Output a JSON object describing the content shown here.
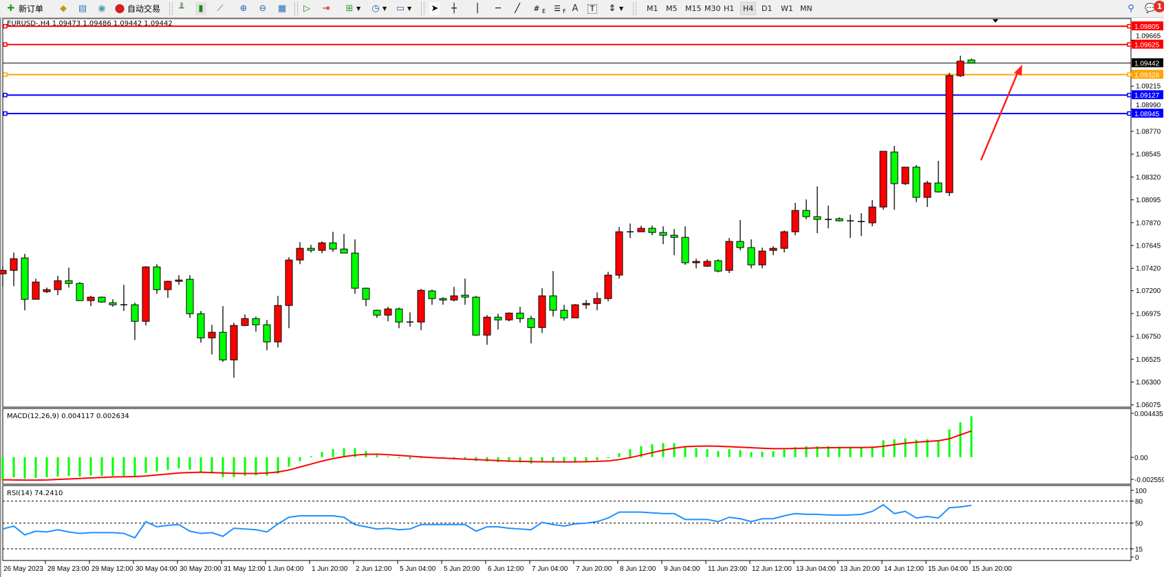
{
  "toolbar": {
    "new_order_label": "新订单",
    "auto_trading_label": "自动交易",
    "icons": [
      "new-order-icon",
      "market-watch-icon",
      "navigator-icon",
      "signals-icon",
      "auto-trading-icon",
      "bar-chart-icon",
      "candlestick-icon",
      "line-chart-icon",
      "zoom-in-icon",
      "zoom-out-icon",
      "tile-windows-icon",
      "auto-scroll-icon",
      "chart-shift-icon",
      "indicators-icon",
      "periods-icon",
      "templates-icon",
      "cursor-icon",
      "crosshair-icon",
      "vertical-line-icon",
      "horizontal-line-icon",
      "trendline-icon",
      "equidistant-channel-icon",
      "fibonacci-icon",
      "text-icon",
      "text-label-icon",
      "arrows-icon",
      "search-icon",
      "notifications-icon"
    ],
    "timeframes": [
      "M1",
      "M5",
      "M15",
      "M30",
      "H1",
      "H4",
      "D1",
      "W1",
      "MN"
    ],
    "active_timeframe": "H4",
    "channel_label": "E",
    "fib_label": "F",
    "text_label": "A",
    "label_tool": "T",
    "notification_count": "1"
  },
  "chart": {
    "header": "EURUSD-,H4  1.09473 1.09486 1.09442 1.09442",
    "bull_color": "#ff0000",
    "bear_color": "#00ff00",
    "price_axis_labels": [
      "1.09665",
      "1.09215",
      "1.08990",
      "1.08770",
      "1.08545",
      "1.08320",
      "1.08095",
      "1.07870",
      "1.07645",
      "1.07420",
      "1.07200",
      "1.06975",
      "1.06750",
      "1.06525",
      "1.06300",
      "1.06075"
    ],
    "levels": [
      {
        "price": "1.09805",
        "color": "#ff0000"
      },
      {
        "price": "1.09625",
        "color": "#ff0000"
      },
      {
        "price": "1.09328",
        "color": "#ffa500"
      },
      {
        "price": "1.09127",
        "color": "#0000ff"
      },
      {
        "price": "1.08945",
        "color": "#0000ff"
      }
    ],
    "bid": {
      "price": "1.09442",
      "color": "#000000"
    },
    "arrow_color": "#ff2020",
    "time_labels": [
      "26 May 2023",
      "28 May 23:00",
      "29 May 12:00",
      "30 May 04:00",
      "30 May 20:00",
      "31 May 12:00",
      "1 Jun 04:00",
      "1 Jun 20:00",
      "2 Jun 12:00",
      "5 Jun 04:00",
      "5 Jun 20:00",
      "6 Jun 12:00",
      "7 Jun 04:00",
      "7 Jun 20:00",
      "8 Jun 12:00",
      "9 Jun 04:00",
      "11 Jun 23:00",
      "12 Jun 12:00",
      "13 Jun 04:00",
      "13 Jun 20:00",
      "14 Jun 12:00",
      "15 Jun 04:00",
      "15 Jun 20:00"
    ],
    "candles_ohlc": [
      [
        1.07366,
        1.07441,
        1.07237,
        1.074
      ],
      [
        1.074,
        1.07576,
        1.07244,
        1.07515
      ],
      [
        1.07522,
        1.07563,
        1.07007,
        1.07115
      ],
      [
        1.07115,
        1.07319,
        1.07115,
        1.07285
      ],
      [
        1.0719,
        1.07231,
        1.07176,
        1.0721
      ],
      [
        1.0721,
        1.07346,
        1.07156,
        1.07298
      ],
      [
        1.07298,
        1.07427,
        1.07231,
        1.07271
      ],
      [
        1.07271,
        1.07285,
        1.07102,
        1.07102
      ],
      [
        1.07102,
        1.07149,
        1.07047,
        1.07136
      ],
      [
        1.07136,
        1.07142,
        1.07081,
        1.07088
      ],
      [
        1.07081,
        1.07115,
        1.07041,
        1.07061
      ],
      [
        1.07061,
        1.07258,
        1.07,
        1.07061
      ],
      [
        1.07061,
        1.07081,
        1.06715,
        1.06898
      ],
      [
        1.06898,
        1.07441,
        1.06857,
        1.07434
      ],
      [
        1.07434,
        1.07461,
        1.07169,
        1.0721
      ],
      [
        1.0721,
        1.07298,
        1.07129,
        1.07292
      ],
      [
        1.07292,
        1.07353,
        1.07258,
        1.07305
      ],
      [
        1.07312,
        1.07353,
        1.06932,
        1.06973
      ],
      [
        1.06973,
        1.07,
        1.06688,
        1.06735
      ],
      [
        1.06735,
        1.06864,
        1.06572,
        1.0679
      ],
      [
        1.0679,
        1.07047,
        1.06498,
        1.06518
      ],
      [
        1.06518,
        1.06884,
        1.06342,
        1.06857
      ],
      [
        1.06857,
        1.06966,
        1.06851,
        1.06925
      ],
      [
        1.06925,
        1.06945,
        1.06796,
        1.06864
      ],
      [
        1.06864,
        1.06912,
        1.06613,
        1.06695
      ],
      [
        1.06695,
        1.07149,
        1.0664,
        1.07054
      ],
      [
        1.07054,
        1.07529,
        1.0683,
        1.07502
      ],
      [
        1.07502,
        1.07678,
        1.07461,
        1.07617
      ],
      [
        1.07617,
        1.07651,
        1.07576,
        1.07597
      ],
      [
        1.07597,
        1.07685,
        1.0757,
        1.07671
      ],
      [
        1.07671,
        1.0778,
        1.07583,
        1.0761
      ],
      [
        1.0761,
        1.07759,
        1.0757,
        1.0757
      ],
      [
        1.0757,
        1.07705,
        1.07169,
        1.07224
      ],
      [
        1.07224,
        1.07231,
        1.07047,
        1.07115
      ],
      [
        1.07007,
        1.07013,
        1.06932,
        1.06959
      ],
      [
        1.06959,
        1.07041,
        1.06898,
        1.0702
      ],
      [
        1.0702,
        1.07034,
        1.0683,
        1.06891
      ],
      [
        1.06891,
        1.06986,
        1.06844,
        1.06891
      ],
      [
        1.06891,
        1.07217,
        1.0681,
        1.07203
      ],
      [
        1.07197,
        1.0721,
        1.07061,
        1.07122
      ],
      [
        1.07122,
        1.07136,
        1.07061,
        1.07108
      ],
      [
        1.07108,
        1.07237,
        1.07095,
        1.07149
      ],
      [
        1.07156,
        1.07319,
        1.07061,
        1.07136
      ],
      [
        1.07136,
        1.07149,
        1.06756,
        1.06762
      ],
      [
        1.06762,
        1.06959,
        1.06667,
        1.06939
      ],
      [
        1.06939,
        1.06973,
        1.06817,
        1.06912
      ],
      [
        1.06912,
        1.06986,
        1.06898,
        1.06979
      ],
      [
        1.06979,
        1.07041,
        1.06884,
        1.06925
      ],
      [
        1.06925,
        1.06952,
        1.06681,
        1.06837
      ],
      [
        1.06837,
        1.07224,
        1.06783,
        1.07149
      ],
      [
        1.07149,
        1.07393,
        1.06945,
        1.07007
      ],
      [
        1.07007,
        1.07061,
        1.06905,
        1.06932
      ],
      [
        1.06932,
        1.07068,
        1.06932,
        1.07061
      ],
      [
        1.07061,
        1.07108,
        1.0702,
        1.07074
      ],
      [
        1.07074,
        1.07183,
        1.07007,
        1.07122
      ],
      [
        1.07122,
        1.07386,
        1.07095,
        1.07353
      ],
      [
        1.07353,
        1.07827,
        1.07319,
        1.0778
      ],
      [
        1.0778,
        1.07861,
        1.07719,
        1.0778
      ],
      [
        1.0778,
        1.07841,
        1.0778,
        1.07814
      ],
      [
        1.07814,
        1.07841,
        1.07746,
        1.07773
      ],
      [
        1.07773,
        1.07834,
        1.07658,
        1.07746
      ],
      [
        1.07746,
        1.07807,
        1.07549,
        1.07725
      ],
      [
        1.07725,
        1.07834,
        1.07454,
        1.07475
      ],
      [
        1.07475,
        1.07515,
        1.0742,
        1.07488
      ],
      [
        1.07441,
        1.07509,
        1.07434,
        1.07488
      ],
      [
        1.07495,
        1.07509,
        1.0738,
        1.07393
      ],
      [
        1.074,
        1.07719,
        1.07373,
        1.07685
      ],
      [
        1.07685,
        1.07895,
        1.07597,
        1.07624
      ],
      [
        1.07624,
        1.07705,
        1.0742,
        1.07454
      ],
      [
        1.07454,
        1.07624,
        1.0742,
        1.0759
      ],
      [
        1.07597,
        1.07637,
        1.07549,
        1.07617
      ],
      [
        1.07617,
        1.07793,
        1.07576,
        1.0778
      ],
      [
        1.0778,
        1.08065,
        1.07746,
        1.0799
      ],
      [
        1.0799,
        1.08099,
        1.07902,
        1.07929
      ],
      [
        1.07929,
        1.08227,
        1.07766,
        1.07902
      ],
      [
        1.07902,
        1.08038,
        1.07814,
        1.07902
      ],
      [
        1.07909,
        1.07922,
        1.07881,
        1.07888
      ],
      [
        1.07888,
        1.07949,
        1.07719,
        1.07888
      ],
      [
        1.07881,
        1.07963,
        1.07739,
        1.07881
      ],
      [
        1.07868,
        1.08092,
        1.07834,
        1.08024
      ],
      [
        1.08024,
        1.08573,
        1.07997,
        1.08573
      ],
      [
        1.08566,
        1.08627,
        1.07997,
        1.08254
      ],
      [
        1.08254,
        1.08417,
        1.08241,
        1.08417
      ],
      [
        1.08417,
        1.08438,
        1.08072,
        1.08119
      ],
      [
        1.08119,
        1.08282,
        1.08024,
        1.08261
      ],
      [
        1.08261,
        1.08478,
        1.08166,
        1.08173
      ],
      [
        1.08166,
        1.09345,
        1.08133,
        1.09318
      ],
      [
        1.09318,
        1.09515,
        1.09305,
        1.09461
      ],
      [
        1.09473,
        1.09486,
        1.09442,
        1.09442
      ]
    ]
  },
  "macd": {
    "label": "MACD(12,26,9) 0.004117 0.002634",
    "axis_labels": [
      "0.004435",
      "0.00",
      "-0.002559"
    ],
    "histogram_color": "#00ff00",
    "signal_color": "#ff0000",
    "histogram": [
      -0.00233,
      -0.00203,
      -0.00217,
      -0.0021,
      -0.00203,
      -0.00196,
      -0.00189,
      -0.00196,
      -0.00185,
      -0.00189,
      -0.00189,
      -0.00189,
      -0.00203,
      -0.00159,
      -0.00145,
      -0.00127,
      -0.00113,
      -0.00127,
      -0.00147,
      -0.00166,
      -0.00201,
      -0.00201,
      -0.00187,
      -0.00182,
      -0.00187,
      -0.00166,
      -0.00096,
      -0.00041,
      0.0001,
      0.00052,
      0.0008,
      0.0009,
      0.0009,
      0.0006,
      0.0002,
      5e-05,
      -0.0001,
      -0.0002,
      -0.0001,
      -0.0001,
      -0.00015,
      -0.00015,
      -0.0002,
      -0.0004,
      -0.00045,
      -0.0005,
      -0.0005,
      -0.00055,
      -0.00065,
      -0.0005,
      -0.0005,
      -0.00055,
      -0.0005,
      -0.0004,
      -0.0003,
      -0.0001,
      0.0004,
      0.0008,
      0.0011,
      0.0013,
      0.0014,
      0.0014,
      0.0011,
      0.0009,
      0.0008,
      0.0006,
      0.0008,
      0.0007,
      0.0005,
      0.00055,
      0.0006,
      0.00075,
      0.001,
      0.0011,
      0.0011,
      0.0011,
      0.00105,
      0.001,
      0.00095,
      0.0011,
      0.0017,
      0.0018,
      0.0019,
      0.00175,
      0.0018,
      0.0017,
      0.0028,
      0.0035,
      0.004117
    ],
    "signal": [
      -0.00228,
      -0.0023,
      -0.00232,
      -0.00232,
      -0.0023,
      -0.00225,
      -0.0022,
      -0.00215,
      -0.0021,
      -0.00205,
      -0.002,
      -0.00198,
      -0.00196,
      -0.0019,
      -0.0018,
      -0.0017,
      -0.0016,
      -0.00155,
      -0.00152,
      -0.00155,
      -0.0016,
      -0.00163,
      -0.00165,
      -0.00165,
      -0.0016,
      -0.0015,
      -0.0013,
      -0.001,
      -0.0007,
      -0.0004,
      -0.00015,
      5e-05,
      0.0002,
      0.00028,
      0.0003,
      0.00025,
      0.00018,
      0.0001,
      2e-05,
      -5e-05,
      -0.0001,
      -0.00015,
      -0.0002,
      -0.00025,
      -0.0003,
      -0.00035,
      -0.0004,
      -0.00042,
      -0.00045,
      -0.00047,
      -0.00048,
      -0.00048,
      -0.00048,
      -0.00046,
      -0.00043,
      -0.00038,
      -0.00025,
      -5e-05,
      0.0002,
      0.00045,
      0.0007,
      0.0009,
      0.00105,
      0.0011,
      0.00112,
      0.0011,
      0.00105,
      0.001,
      0.00095,
      0.0009,
      0.00085,
      0.00085,
      0.00088,
      0.0009,
      0.00093,
      0.00095,
      0.00096,
      0.00097,
      0.00097,
      0.00098,
      0.0011,
      0.00125,
      0.0014,
      0.0015,
      0.00158,
      0.00165,
      0.00185,
      0.00225,
      0.002634
    ]
  },
  "rsi": {
    "label": "RSI(14) 74.2410",
    "axis_labels": [
      "100",
      "80",
      "50",
      "15",
      "0"
    ],
    "line_color": "#1e90ff",
    "levels": [
      80,
      50,
      15
    ],
    "values": [
      42,
      46,
      34,
      39,
      38,
      41,
      38,
      36,
      37,
      37,
      37,
      36,
      30,
      52,
      45,
      47,
      48,
      39,
      36,
      37,
      32,
      43,
      42,
      41,
      38,
      49,
      58,
      60,
      60,
      60,
      60,
      58,
      48,
      45,
      42,
      43,
      41,
      42,
      48,
      48,
      48,
      48,
      48,
      39,
      45,
      45,
      43,
      42,
      41,
      51,
      48,
      46,
      49,
      50,
      52,
      57,
      65,
      65,
      65,
      64,
      63,
      63,
      55,
      55,
      55,
      52,
      58,
      56,
      52,
      56,
      56,
      60,
      63,
      62,
      62,
      61,
      61,
      61,
      62,
      66,
      75,
      63,
      66,
      57,
      59,
      57,
      71,
      72,
      74.241
    ]
  }
}
